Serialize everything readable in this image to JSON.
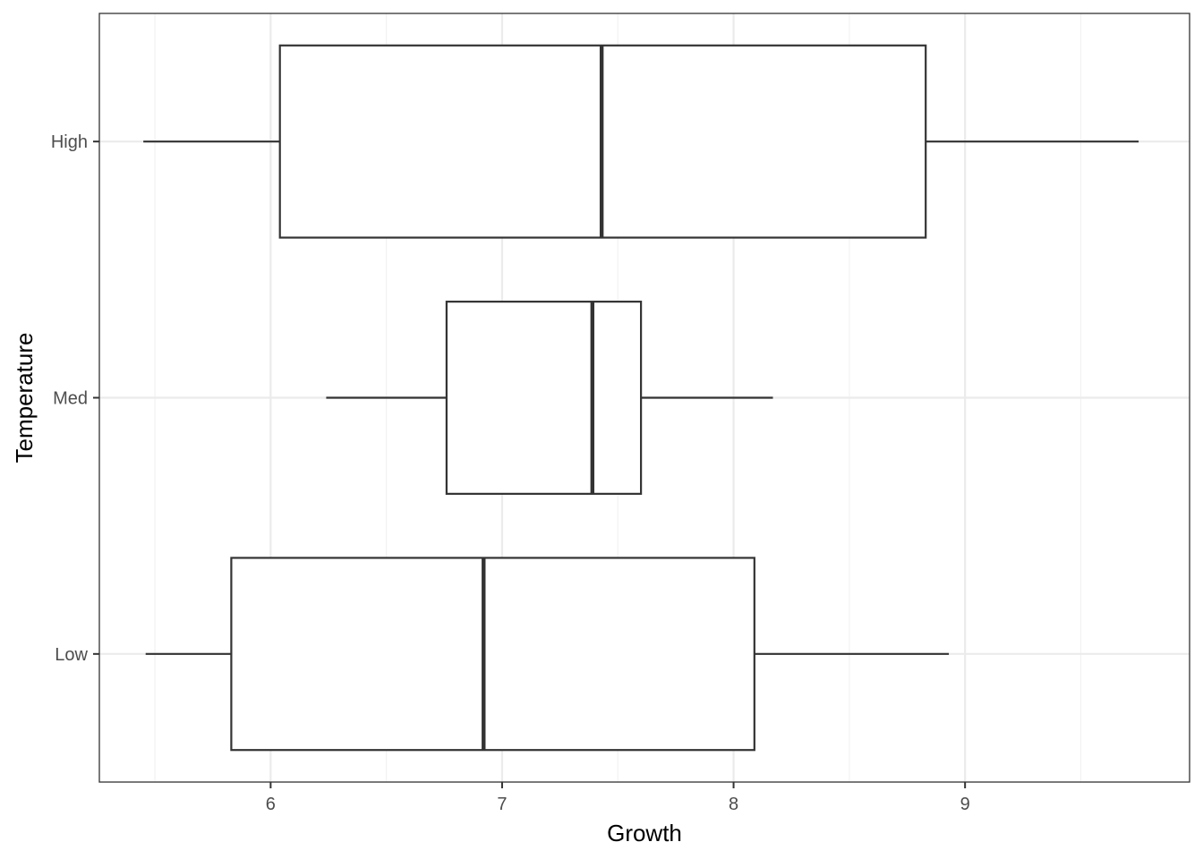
{
  "chart_data": {
    "type": "boxplot",
    "orientation": "horizontal",
    "title": "",
    "xlabel": "Growth",
    "ylabel": "Temperature",
    "xlim": [
      5.26,
      9.97
    ],
    "x_ticks": [
      6,
      7,
      8,
      9
    ],
    "x_tick_labels": [
      "6",
      "7",
      "8",
      "9"
    ],
    "x_minor_gridlines": [
      5.5,
      6.5,
      7.5,
      8.5,
      9.5
    ],
    "grid": true,
    "legend": "none",
    "categories": [
      "Low",
      "Med",
      "High"
    ],
    "boxes": [
      {
        "category": "Low",
        "whisker_low": 5.46,
        "q1": 5.83,
        "median": 6.92,
        "q3": 8.09,
        "whisker_high": 8.93
      },
      {
        "category": "Med",
        "whisker_low": 6.24,
        "q1": 6.76,
        "median": 7.39,
        "q3": 7.6,
        "whisker_high": 8.17
      },
      {
        "category": "High",
        "whisker_low": 5.45,
        "q1": 6.04,
        "median": 7.43,
        "q3": 8.83,
        "whisker_high": 9.75
      }
    ],
    "colors": {
      "box_stroke": "#333333",
      "box_fill": "#ffffff",
      "grid_major": "#ebebeb",
      "grid_minor": "#f2f2f2",
      "panel_border": "#333333"
    }
  }
}
